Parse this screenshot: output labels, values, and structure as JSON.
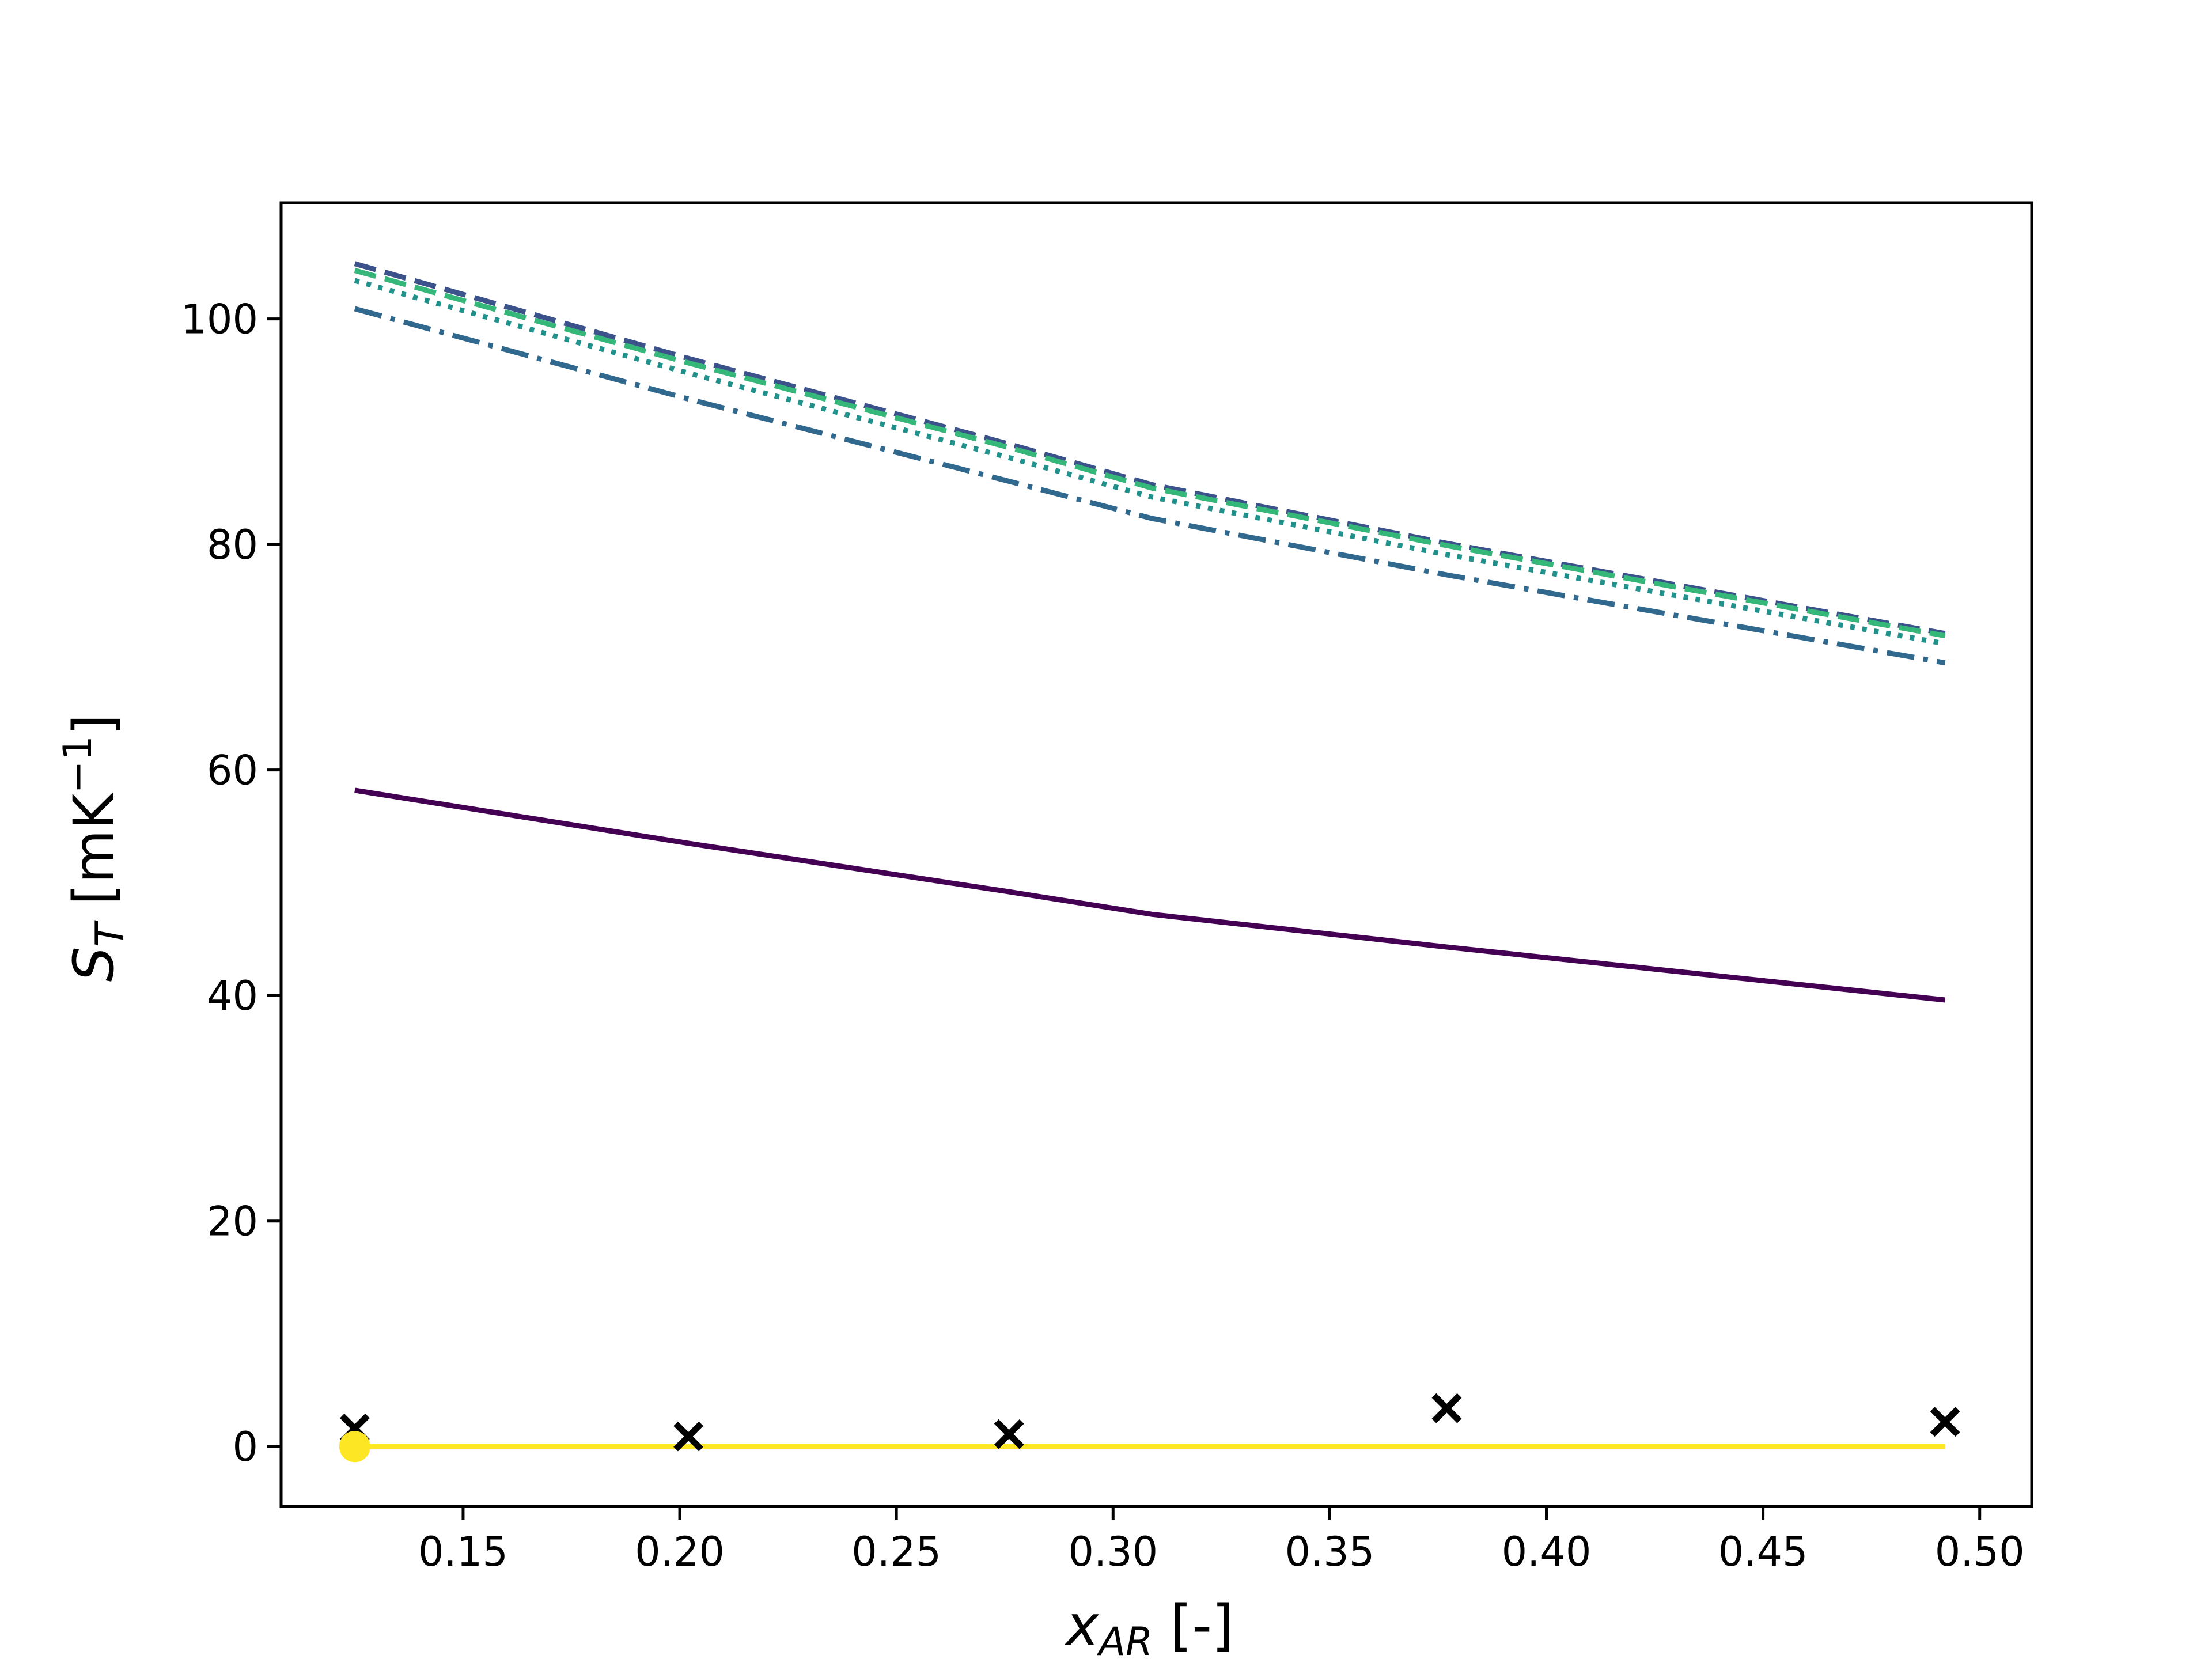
{
  "chart_data": {
    "type": "line",
    "title": "",
    "xlabel": {
      "main": "x",
      "sub": "AR",
      "suffix": " [-]"
    },
    "ylabel": {
      "main": "S",
      "sub": "T",
      "suffix": " [mK",
      "sup": "−1",
      "end": "]"
    },
    "xlim": [
      0.108,
      0.512
    ],
    "ylim": [
      -5.3,
      110.3
    ],
    "xticks": [
      0.15,
      0.2,
      0.25,
      0.3,
      0.35,
      0.4,
      0.45,
      0.5
    ],
    "xtick_labels": [
      "0.15",
      "0.20",
      "0.25",
      "0.30",
      "0.35",
      "0.40",
      "0.45",
      "0.50"
    ],
    "yticks": [
      0,
      20,
      40,
      60,
      80,
      100
    ],
    "ytick_labels": [
      "0",
      "20",
      "40",
      "60",
      "80",
      "100"
    ],
    "grid": false,
    "legend": "none",
    "series": [
      {
        "color": "#440154",
        "linestyle": "solid",
        "x": [
          0.125,
          0.202,
          0.276,
          0.309,
          0.377,
          0.492
        ],
        "y": [
          58.2,
          53.5,
          49.2,
          47.2,
          44.3,
          39.6
        ]
      },
      {
        "color": "#3b528b",
        "linestyle": "dashed",
        "x": [
          0.125,
          0.202,
          0.276,
          0.309,
          0.377,
          0.492
        ],
        "y": [
          104.9,
          96.5,
          88.9,
          85.3,
          80.1,
          72.1
        ]
      },
      {
        "color": "#31688e",
        "linestyle": "dashdot",
        "x": [
          0.125,
          0.202,
          0.276,
          0.309,
          0.377,
          0.492
        ],
        "y": [
          100.9,
          92.9,
          85.6,
          82.3,
          77.3,
          69.5
        ]
      },
      {
        "color": "#35b779",
        "linestyle": "dashed",
        "x": [
          0.125,
          0.202,
          0.276,
          0.309,
          0.377,
          0.492
        ],
        "y": [
          104.3,
          96.1,
          88.6,
          85.0,
          79.9,
          71.9
        ]
      },
      {
        "color": "#21918c",
        "linestyle": "dotted",
        "x": [
          0.125,
          0.202,
          0.276,
          0.309,
          0.377,
          0.492
        ],
        "y": [
          103.4,
          95.2,
          87.7,
          84.2,
          79.1,
          71.2
        ]
      },
      {
        "color": "#fde725",
        "linestyle": "solid",
        "x": [
          0.125,
          0.202,
          0.276,
          0.309,
          0.377,
          0.492
        ],
        "y": [
          0.0,
          0.0,
          0.0,
          0.0,
          0.0,
          0.0
        ]
      }
    ],
    "scatter": [
      {
        "marker": "x",
        "color": "#000000",
        "x": [
          0.125,
          0.202,
          0.276,
          0.377,
          0.492
        ],
        "y": [
          1.6,
          0.9,
          1.1,
          3.4,
          2.2
        ]
      },
      {
        "marker": "o",
        "color": "#fde725",
        "x": [
          0.125
        ],
        "y": [
          0.0
        ]
      }
    ]
  }
}
